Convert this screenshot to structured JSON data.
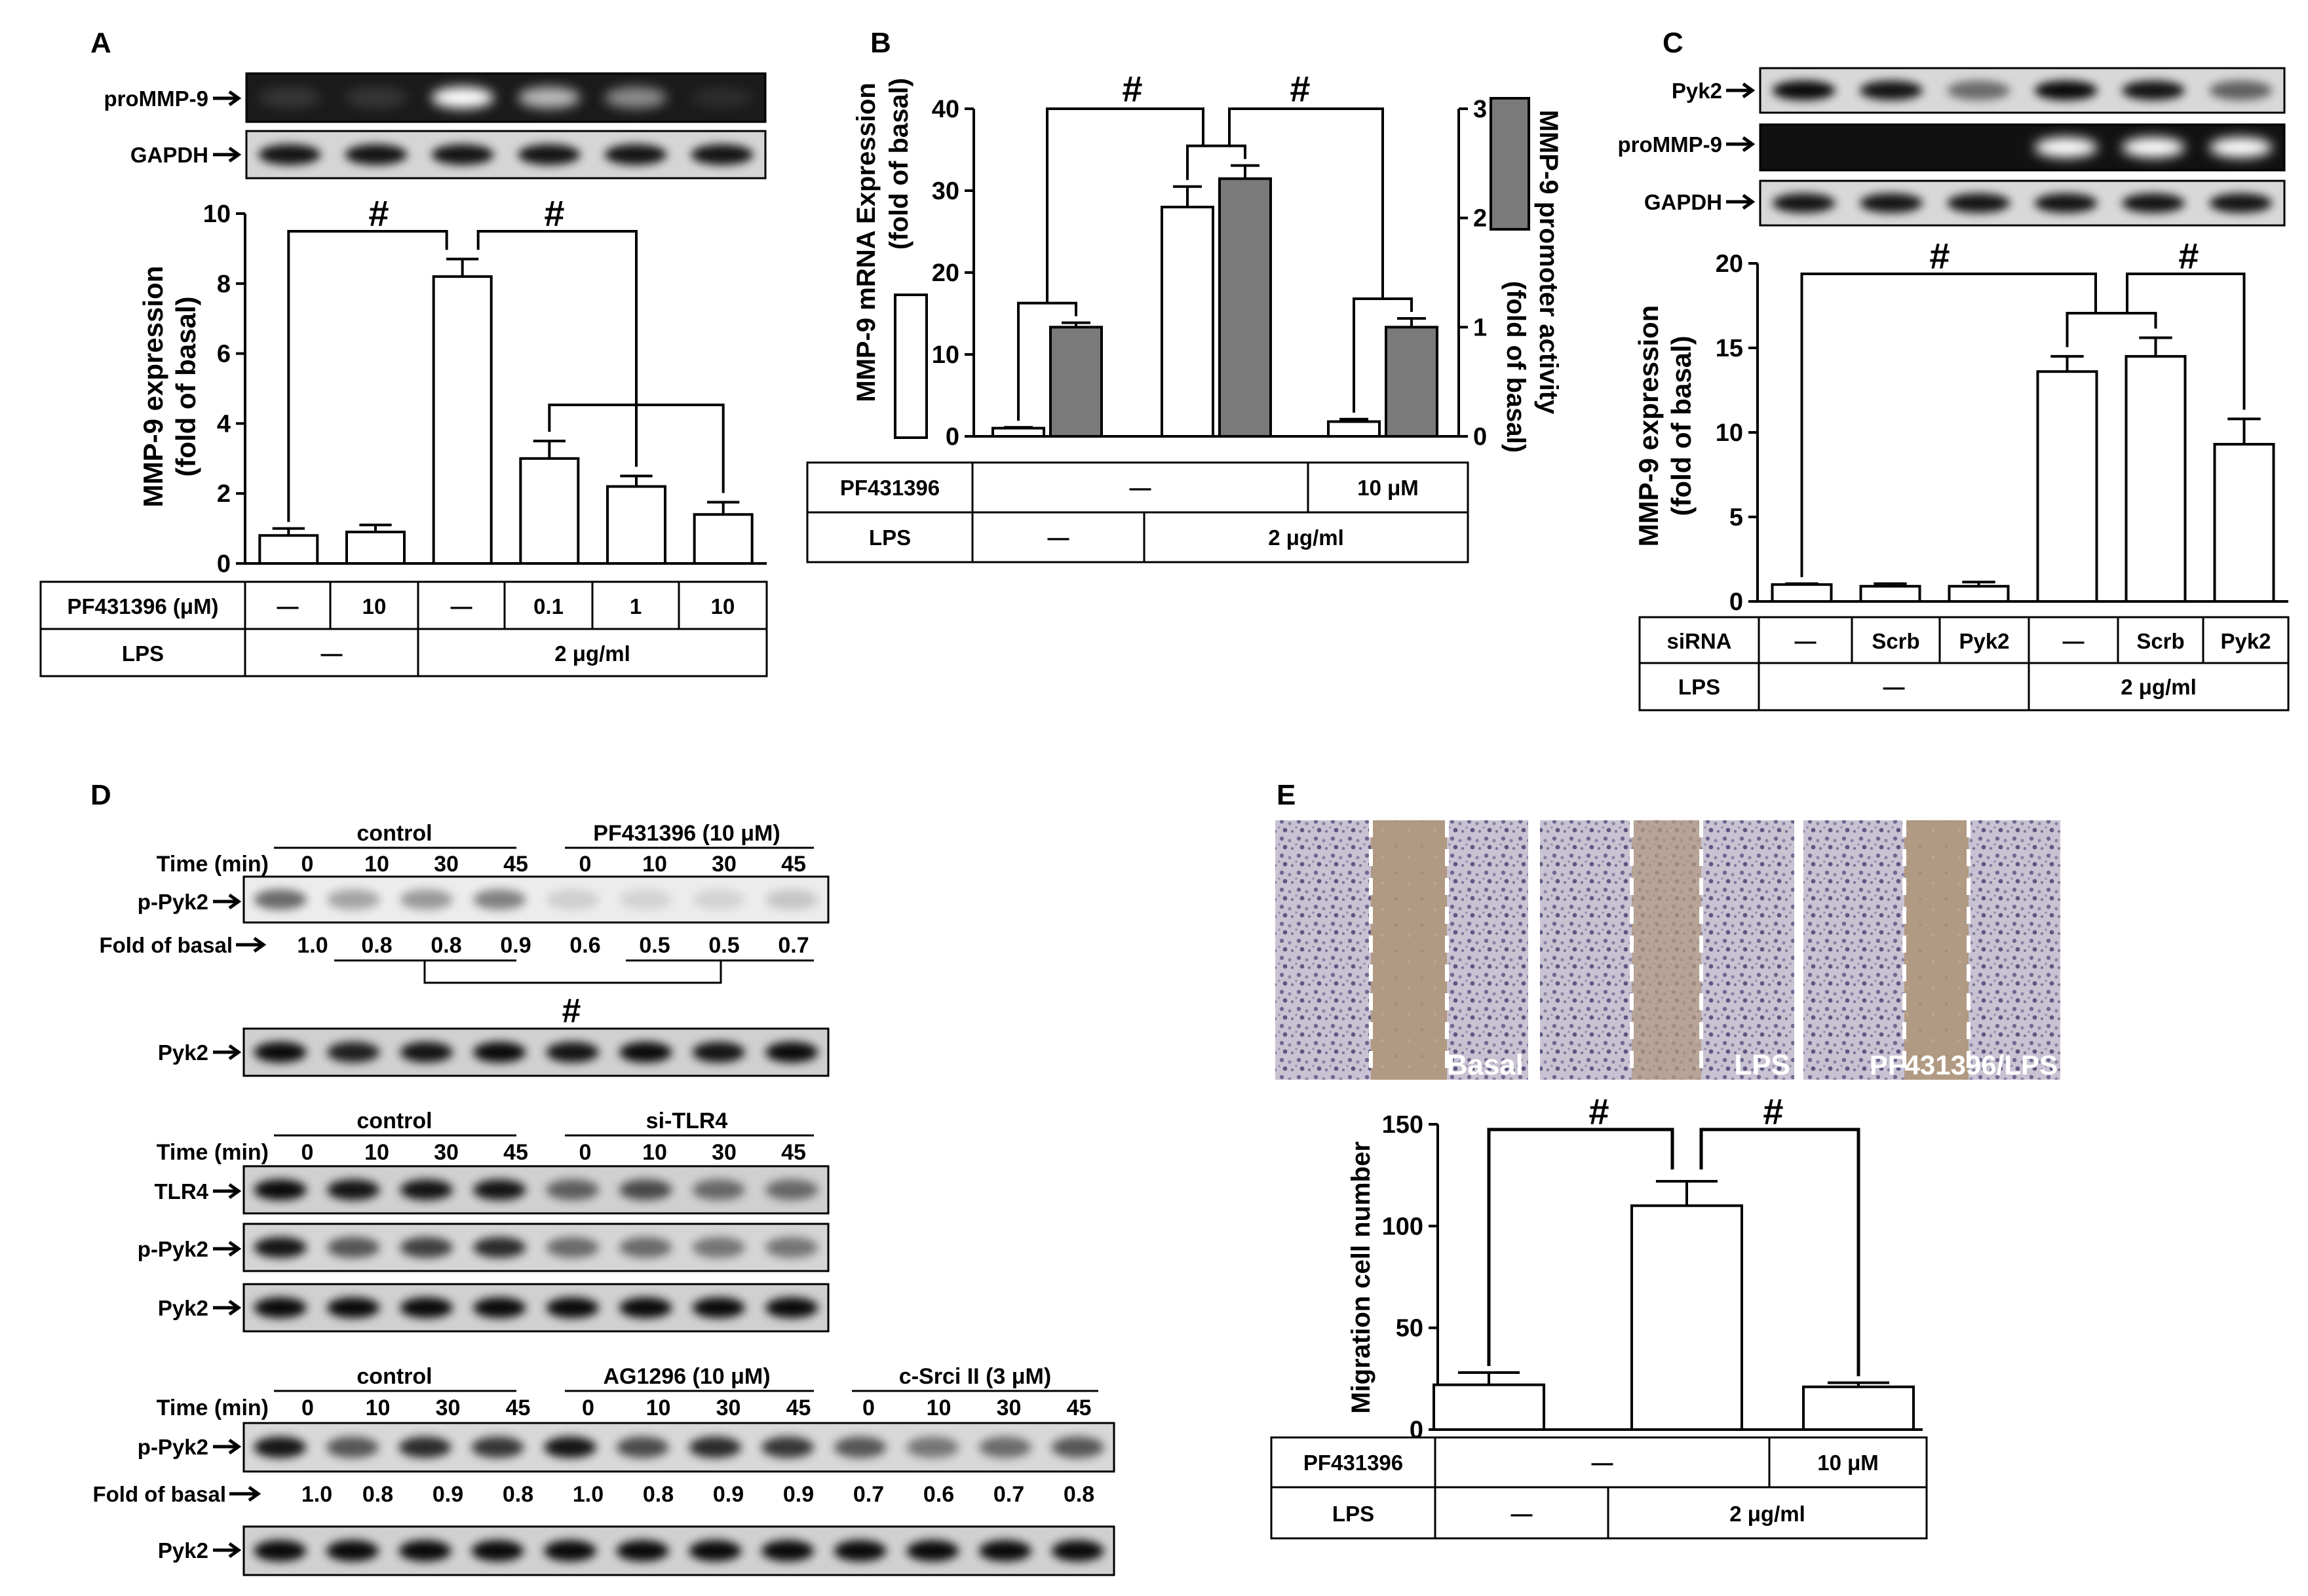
{
  "panels": {
    "A": "A",
    "B": "B",
    "C": "C",
    "D": "D",
    "E": "E"
  },
  "sym": {
    "hash": "#",
    "dash": "—",
    "arrow": "→"
  },
  "panelA": {
    "blot_labels": [
      "proMMP-9",
      "GAPDH"
    ],
    "ylabel1": "MMP-9  expression",
    "ylabel2": "(fold of basal)",
    "table": {
      "row1_label": "PF431396 (μM)",
      "row1_cells": [
        "—",
        "10",
        "—",
        "0.1",
        "1",
        "10"
      ],
      "row2_label": "LPS",
      "row2_cells": [
        "—",
        "2 μg/ml"
      ]
    }
  },
  "panelB": {
    "ylabel_left1": "MMP-9 mRNA  Expression",
    "ylabel_left2": "(fold of basal)",
    "ylabel_right1": "MMP-9 promoter activity",
    "ylabel_right2": "(fold of basal)",
    "table": {
      "row1_label": "PF431396",
      "row1_cells": [
        "—",
        "10 μM"
      ],
      "row2_label": "LPS",
      "row2_cells": [
        "—",
        "2 μg/ml"
      ]
    }
  },
  "panelC": {
    "blot_labels": [
      "Pyk2",
      "proMMP-9",
      "GAPDH"
    ],
    "ylabel1": "MMP-9  expression",
    "ylabel2": "(fold of basal)",
    "table": {
      "row1_label": "siRNA",
      "row1_cells": [
        "—",
        "Scrb",
        "Pyk2",
        "—",
        "Scrb",
        "Pyk2"
      ],
      "row2_label": "LPS",
      "row2_cells": [
        "—",
        "2 μg/ml"
      ]
    }
  },
  "panelD": {
    "time_label": "Time (min)",
    "times": [
      "0",
      "10",
      "30",
      "45"
    ],
    "block1": {
      "groups": [
        "control",
        "PF431396 (10 μM)"
      ],
      "blots": [
        "p-Pyk2",
        "Pyk2"
      ],
      "fold_label": "Fold of basal",
      "folds": [
        "1.0",
        "0.8",
        "0.8",
        "0.9",
        "0.6",
        "0.5",
        "0.5",
        "0.7"
      ]
    },
    "block2": {
      "groups": [
        "control",
        "si-TLR4"
      ],
      "blots": [
        "TLR4",
        "p-Pyk2",
        "Pyk2"
      ]
    },
    "block3": {
      "groups": [
        "control",
        "AG1296 (10 μM)",
        "c-Srci II (3 μM)"
      ],
      "blots": [
        "p-Pyk2",
        "Pyk2"
      ],
      "fold_label": "Fold of basal",
      "folds": [
        "1.0",
        "0.8",
        "0.9",
        "0.8",
        "1.0",
        "0.8",
        "0.9",
        "0.9",
        "0.7",
        "0.6",
        "0.7",
        "0.8"
      ]
    }
  },
  "panelE": {
    "image_labels": [
      "Basal",
      "LPS",
      "PF431396/LPS"
    ],
    "ylabel": "Migration cell number",
    "table": {
      "row1_label": "PF431396",
      "row1_cells": [
        "—",
        "10 μM"
      ],
      "row2_label": "LPS",
      "row2_cells": [
        "—",
        "2 μg/ml"
      ]
    }
  },
  "chart_data": [
    {
      "type": "bar",
      "panel": "A",
      "ylabel": "MMP-9 expression (fold of basal)",
      "ylim": [
        0,
        10
      ],
      "yticks": [
        0,
        2,
        4,
        6,
        8,
        10
      ],
      "values": [
        0.8,
        0.9,
        8.2,
        3.0,
        2.2,
        1.4
      ],
      "errors": [
        0.2,
        0.2,
        0.5,
        0.5,
        0.3,
        0.35
      ]
    },
    {
      "type": "bar",
      "panel": "B",
      "ylim": [
        0,
        40
      ],
      "yticks": [
        0,
        10,
        20,
        30,
        40
      ],
      "y2lim": [
        0,
        3
      ],
      "y2ticks": [
        0,
        1,
        2,
        3
      ],
      "series": [
        {
          "name": "MMP-9 mRNA Expression",
          "values": [
            1.0,
            28,
            1.8
          ],
          "errors": [
            0.1,
            2.5,
            0.3
          ]
        },
        {
          "name": "MMP-9 promoter activity",
          "values": [
            1.0,
            2.36,
            1.0
          ],
          "errors": [
            0.04,
            0.12,
            0.08
          ]
        }
      ]
    },
    {
      "type": "bar",
      "panel": "C",
      "ylabel": "MMP-9 expression (fold of basal)",
      "ylim": [
        0,
        20
      ],
      "yticks": [
        0,
        5,
        10,
        15,
        20
      ],
      "values": [
        1.0,
        0.9,
        0.9,
        13.6,
        14.5,
        9.3
      ],
      "errors": [
        0.05,
        0.15,
        0.25,
        0.9,
        1.1,
        1.5
      ]
    },
    {
      "type": "bar",
      "panel": "E",
      "ylabel": "Migration cell number",
      "ylim": [
        0,
        150
      ],
      "yticks": [
        0,
        50,
        100,
        150
      ],
      "values": [
        22,
        110,
        21
      ],
      "errors": [
        6,
        12,
        2
      ]
    }
  ]
}
